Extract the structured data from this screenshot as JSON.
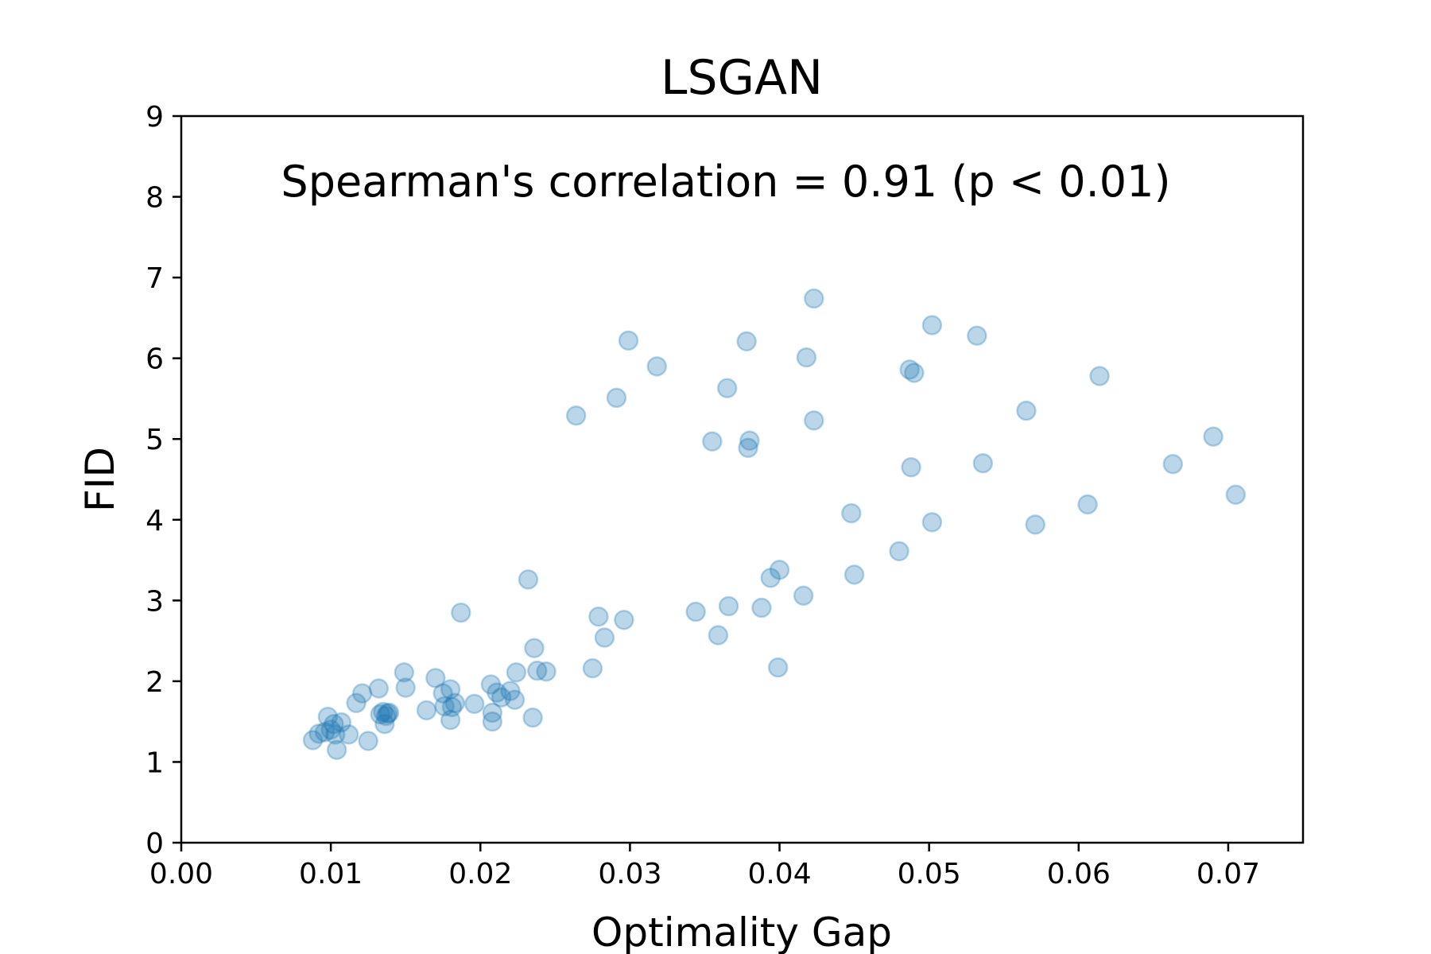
{
  "chart_data": {
    "type": "scatter",
    "title": "LSGAN",
    "xlabel": "Optimality Gap",
    "ylabel": "FID",
    "annotation": "Spearman's correlation = 0.91 (p < 0.01)",
    "xlim": [
      0.0,
      0.075
    ],
    "ylim": [
      0,
      9
    ],
    "xticks": [
      0.0,
      0.01,
      0.02,
      0.03,
      0.04,
      0.05,
      0.06,
      0.07
    ],
    "xtick_labels": [
      "0.00",
      "0.01",
      "0.02",
      "0.03",
      "0.04",
      "0.05",
      "0.06",
      "0.07"
    ],
    "yticks": [
      0,
      1,
      2,
      3,
      4,
      5,
      6,
      7,
      8,
      9
    ],
    "ytick_labels": [
      "0",
      "1",
      "2",
      "3",
      "4",
      "5",
      "6",
      "7",
      "8",
      "9"
    ],
    "grid": false,
    "point_color": "#1f77b4",
    "points": [
      {
        "x": 0.0088,
        "y": 1.27
      },
      {
        "x": 0.0092,
        "y": 1.35
      },
      {
        "x": 0.0096,
        "y": 1.37
      },
      {
        "x": 0.0098,
        "y": 1.56
      },
      {
        "x": 0.01,
        "y": 1.4
      },
      {
        "x": 0.0102,
        "y": 1.47
      },
      {
        "x": 0.0103,
        "y": 1.34
      },
      {
        "x": 0.0104,
        "y": 1.15
      },
      {
        "x": 0.0107,
        "y": 1.49
      },
      {
        "x": 0.0112,
        "y": 1.34
      },
      {
        "x": 0.0117,
        "y": 1.73
      },
      {
        "x": 0.0121,
        "y": 1.85
      },
      {
        "x": 0.0125,
        "y": 1.26
      },
      {
        "x": 0.0132,
        "y": 1.91
      },
      {
        "x": 0.0133,
        "y": 1.59
      },
      {
        "x": 0.0135,
        "y": 1.62
      },
      {
        "x": 0.0136,
        "y": 1.47
      },
      {
        "x": 0.0137,
        "y": 1.57
      },
      {
        "x": 0.0138,
        "y": 1.6
      },
      {
        "x": 0.0139,
        "y": 1.61
      },
      {
        "x": 0.0149,
        "y": 2.11
      },
      {
        "x": 0.015,
        "y": 1.92
      },
      {
        "x": 0.0164,
        "y": 1.64
      },
      {
        "x": 0.017,
        "y": 2.04
      },
      {
        "x": 0.0175,
        "y": 1.85
      },
      {
        "x": 0.0176,
        "y": 1.69
      },
      {
        "x": 0.018,
        "y": 1.9
      },
      {
        "x": 0.018,
        "y": 1.52
      },
      {
        "x": 0.0181,
        "y": 1.68
      },
      {
        "x": 0.0183,
        "y": 1.73
      },
      {
        "x": 0.0187,
        "y": 2.85
      },
      {
        "x": 0.0196,
        "y": 1.72
      },
      {
        "x": 0.0207,
        "y": 1.96
      },
      {
        "x": 0.0208,
        "y": 1.61
      },
      {
        "x": 0.0208,
        "y": 1.5
      },
      {
        "x": 0.0211,
        "y": 1.86
      },
      {
        "x": 0.0214,
        "y": 1.8
      },
      {
        "x": 0.022,
        "y": 1.88
      },
      {
        "x": 0.0223,
        "y": 1.77
      },
      {
        "x": 0.0224,
        "y": 2.11
      },
      {
        "x": 0.0232,
        "y": 3.26
      },
      {
        "x": 0.0235,
        "y": 1.55
      },
      {
        "x": 0.0236,
        "y": 2.41
      },
      {
        "x": 0.0238,
        "y": 2.13
      },
      {
        "x": 0.0244,
        "y": 2.12
      },
      {
        "x": 0.0264,
        "y": 5.29
      },
      {
        "x": 0.0275,
        "y": 2.16
      },
      {
        "x": 0.0279,
        "y": 2.8
      },
      {
        "x": 0.0283,
        "y": 2.54
      },
      {
        "x": 0.0291,
        "y": 5.51
      },
      {
        "x": 0.0296,
        "y": 2.76
      },
      {
        "x": 0.0299,
        "y": 6.22
      },
      {
        "x": 0.0318,
        "y": 5.9
      },
      {
        "x": 0.0344,
        "y": 2.86
      },
      {
        "x": 0.0355,
        "y": 4.97
      },
      {
        "x": 0.0359,
        "y": 2.57
      },
      {
        "x": 0.0365,
        "y": 5.63
      },
      {
        "x": 0.0366,
        "y": 2.93
      },
      {
        "x": 0.0378,
        "y": 6.21
      },
      {
        "x": 0.0379,
        "y": 4.89
      },
      {
        "x": 0.038,
        "y": 4.98
      },
      {
        "x": 0.0388,
        "y": 2.91
      },
      {
        "x": 0.0394,
        "y": 3.28
      },
      {
        "x": 0.0399,
        "y": 2.17
      },
      {
        "x": 0.04,
        "y": 3.38
      },
      {
        "x": 0.0416,
        "y": 3.06
      },
      {
        "x": 0.0418,
        "y": 6.01
      },
      {
        "x": 0.0423,
        "y": 5.23
      },
      {
        "x": 0.0423,
        "y": 6.74
      },
      {
        "x": 0.0448,
        "y": 4.08
      },
      {
        "x": 0.045,
        "y": 3.32
      },
      {
        "x": 0.048,
        "y": 3.61
      },
      {
        "x": 0.0487,
        "y": 5.86
      },
      {
        "x": 0.0488,
        "y": 4.65
      },
      {
        "x": 0.049,
        "y": 5.82
      },
      {
        "x": 0.0502,
        "y": 3.97
      },
      {
        "x": 0.0502,
        "y": 6.41
      },
      {
        "x": 0.0532,
        "y": 6.28
      },
      {
        "x": 0.0536,
        "y": 4.7
      },
      {
        "x": 0.0565,
        "y": 5.35
      },
      {
        "x": 0.0571,
        "y": 3.94
      },
      {
        "x": 0.0606,
        "y": 4.19
      },
      {
        "x": 0.0614,
        "y": 5.78
      },
      {
        "x": 0.0663,
        "y": 4.69
      },
      {
        "x": 0.069,
        "y": 5.03
      },
      {
        "x": 0.0705,
        "y": 4.31
      }
    ]
  }
}
